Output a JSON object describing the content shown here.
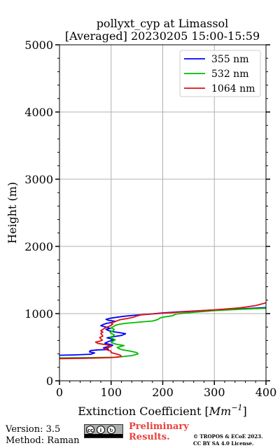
{
  "chart_data": {
    "type": "line",
    "title_line1": "pollyxt_cyp at Limassol",
    "title_line2": "[Averaged] 20230205 15:00-15:59",
    "xlabel_prefix": "Extinction Coefficient [",
    "xlabel_unit": "Mm",
    "xlabel_exp": "−1",
    "xlabel_suffix": "]",
    "ylabel": "Height (m)",
    "xlim": [
      0,
      400
    ],
    "ylim": [
      0,
      5000
    ],
    "xticks": [
      0,
      100,
      200,
      300,
      400
    ],
    "xtick_labels": [
      "0",
      "100",
      "200",
      "300",
      "400"
    ],
    "yticks": [
      0,
      1000,
      2000,
      3000,
      4000,
      5000
    ],
    "ytick_labels": [
      "0",
      "1000",
      "2000",
      "3000",
      "4000",
      "5000"
    ],
    "grid": true,
    "legend_position": "top-right",
    "series": [
      {
        "name": "355 nm",
        "color": "#0000ff",
        "points": [
          [
            0,
            380
          ],
          [
            30,
            385
          ],
          [
            60,
            395
          ],
          [
            68,
            415
          ],
          [
            58,
            430
          ],
          [
            60,
            450
          ],
          [
            75,
            460
          ],
          [
            95,
            465
          ],
          [
            92,
            480
          ],
          [
            85,
            490
          ],
          [
            92,
            505
          ],
          [
            100,
            515
          ],
          [
            103,
            530
          ],
          [
            96,
            545
          ],
          [
            88,
            560
          ],
          [
            95,
            585
          ],
          [
            105,
            610
          ],
          [
            100,
            625
          ],
          [
            92,
            640
          ],
          [
            103,
            655
          ],
          [
            120,
            675
          ],
          [
            128,
            700
          ],
          [
            118,
            715
          ],
          [
            104,
            730
          ],
          [
            96,
            745
          ],
          [
            90,
            765
          ],
          [
            98,
            780
          ],
          [
            90,
            800
          ],
          [
            80,
            820
          ],
          [
            85,
            840
          ],
          [
            92,
            855
          ],
          [
            102,
            870
          ],
          [
            108,
            885
          ],
          [
            95,
            900
          ],
          [
            90,
            915
          ],
          [
            98,
            930
          ],
          [
            110,
            945
          ],
          [
            125,
            960
          ],
          [
            145,
            975
          ],
          [
            170,
            990
          ],
          [
            200,
            1010
          ],
          [
            240,
            1030
          ],
          [
            290,
            1050
          ],
          [
            350,
            1070
          ],
          [
            400,
            1090
          ]
        ]
      },
      {
        "name": "532 nm",
        "color": "#00bb00",
        "points": [
          [
            0,
            340
          ],
          [
            60,
            345
          ],
          [
            110,
            350
          ],
          [
            140,
            375
          ],
          [
            152,
            400
          ],
          [
            150,
            420
          ],
          [
            138,
            440
          ],
          [
            122,
            460
          ],
          [
            115,
            480
          ],
          [
            112,
            495
          ],
          [
            118,
            510
          ],
          [
            125,
            525
          ],
          [
            110,
            545
          ],
          [
            103,
            560
          ],
          [
            100,
            575
          ],
          [
            104,
            590
          ],
          [
            108,
            610
          ],
          [
            102,
            630
          ],
          [
            98,
            650
          ],
          [
            104,
            665
          ],
          [
            106,
            685
          ],
          [
            100,
            705
          ],
          [
            98,
            725
          ],
          [
            104,
            745
          ],
          [
            106,
            765
          ],
          [
            100,
            785
          ],
          [
            104,
            805
          ],
          [
            108,
            825
          ],
          [
            115,
            840
          ],
          [
            128,
            855
          ],
          [
            150,
            870
          ],
          [
            165,
            880
          ],
          [
            180,
            890
          ],
          [
            190,
            910
          ],
          [
            195,
            935
          ],
          [
            203,
            950
          ],
          [
            212,
            960
          ],
          [
            220,
            970
          ],
          [
            224,
            990
          ],
          [
            240,
            1005
          ],
          [
            260,
            1020
          ],
          [
            300,
            1045
          ],
          [
            350,
            1065
          ],
          [
            400,
            1080
          ]
        ]
      },
      {
        "name": "1064 nm",
        "color": "#dd1111",
        "points": [
          [
            0,
            330
          ],
          [
            50,
            335
          ],
          [
            100,
            345
          ],
          [
            120,
            360
          ],
          [
            118,
            380
          ],
          [
            110,
            400
          ],
          [
            100,
            420
          ],
          [
            100,
            440
          ],
          [
            92,
            460
          ],
          [
            88,
            475
          ],
          [
            95,
            495
          ],
          [
            100,
            515
          ],
          [
            92,
            535
          ],
          [
            75,
            555
          ],
          [
            70,
            575
          ],
          [
            78,
            590
          ],
          [
            83,
            605
          ],
          [
            80,
            625
          ],
          [
            78,
            645
          ],
          [
            84,
            665
          ],
          [
            82,
            685
          ],
          [
            80,
            705
          ],
          [
            84,
            725
          ],
          [
            80,
            745
          ],
          [
            84,
            765
          ],
          [
            88,
            785
          ],
          [
            94,
            805
          ],
          [
            100,
            825
          ],
          [
            103,
            845
          ],
          [
            100,
            860
          ],
          [
            108,
            880
          ],
          [
            112,
            895
          ],
          [
            118,
            910
          ],
          [
            130,
            925
          ],
          [
            143,
            945
          ],
          [
            148,
            960
          ],
          [
            158,
            980
          ],
          [
            180,
            995
          ],
          [
            210,
            1010
          ],
          [
            250,
            1030
          ],
          [
            300,
            1055
          ],
          [
            350,
            1085
          ],
          [
            380,
            1120
          ],
          [
            400,
            1160
          ]
        ]
      }
    ]
  },
  "footer": {
    "version": "Version: 3.5",
    "method": "Method: Raman",
    "cc_label_by": "BY",
    "cc_label_sa": "SA",
    "preliminary_line1": "Preliminary",
    "preliminary_line2": "Results.",
    "copyright_line1": "© TROPOS & ECoE 2023.",
    "copyright_line2": "CC BY SA 4.0 License."
  }
}
